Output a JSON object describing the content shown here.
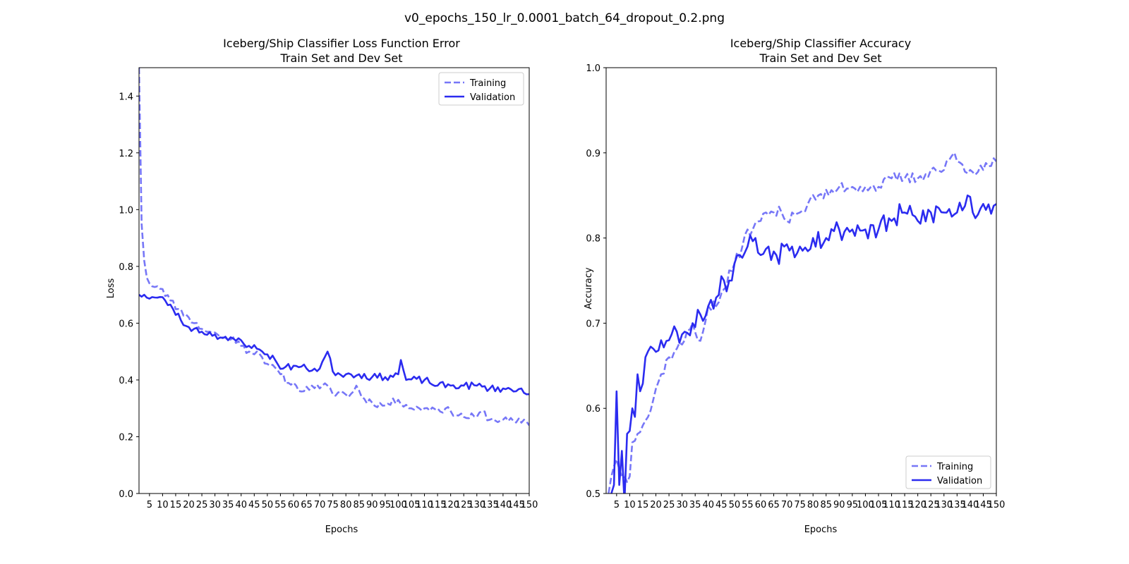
{
  "figure": {
    "suptitle": "v0_epochs_150_lr_0.0001_batch_64_dropout_0.2.png"
  },
  "colors": {
    "training": "#7777f7",
    "validation": "#2b2bf0",
    "axis": "#000000",
    "background": "#ffffff"
  },
  "chart_data": [
    {
      "id": "loss",
      "type": "line",
      "title_line1": "Iceberg/Ship Classifier Loss Function Error",
      "title_line2": "Train Set and Dev Set",
      "xlabel": "Epochs",
      "ylabel": "Loss",
      "xlim": [
        1,
        150
      ],
      "ylim": [
        0.0,
        1.5
      ],
      "xticks": [
        5,
        10,
        15,
        20,
        25,
        30,
        35,
        40,
        45,
        50,
        55,
        60,
        65,
        70,
        75,
        80,
        85,
        90,
        95,
        100,
        105,
        110,
        115,
        120,
        125,
        130,
        135,
        140,
        145,
        150
      ],
      "yticks": [
        0.0,
        0.2,
        0.4,
        0.6,
        0.8,
        1.0,
        1.2,
        1.4
      ],
      "ytick_labels": [
        "0.0",
        "0.2",
        "0.4",
        "0.6",
        "0.8",
        "1.0",
        "1.2",
        "1.4"
      ],
      "grid": false,
      "legend_position": "top-right",
      "series": [
        {
          "name": "Training",
          "style": "dashed",
          "keypoints": [
            [
              1,
              1.5
            ],
            [
              2,
              0.95
            ],
            [
              3,
              0.82
            ],
            [
              4,
              0.76
            ],
            [
              5,
              0.74
            ],
            [
              8,
              0.73
            ],
            [
              10,
              0.72
            ],
            [
              13,
              0.68
            ],
            [
              16,
              0.65
            ],
            [
              19,
              0.63
            ],
            [
              20,
              0.62
            ],
            [
              22,
              0.6
            ],
            [
              25,
              0.58
            ],
            [
              28,
              0.57
            ],
            [
              31,
              0.56
            ],
            [
              35,
              0.54
            ],
            [
              37,
              0.55
            ],
            [
              40,
              0.52
            ],
            [
              43,
              0.5
            ],
            [
              46,
              0.5
            ],
            [
              48,
              0.48
            ],
            [
              51,
              0.45
            ],
            [
              55,
              0.42
            ],
            [
              58,
              0.39
            ],
            [
              61,
              0.38
            ],
            [
              64,
              0.36
            ],
            [
              67,
              0.38
            ],
            [
              70,
              0.37
            ],
            [
              73,
              0.38
            ],
            [
              75,
              0.35
            ],
            [
              78,
              0.36
            ],
            [
              81,
              0.34
            ],
            [
              84,
              0.38
            ],
            [
              86,
              0.34
            ],
            [
              90,
              0.32
            ],
            [
              95,
              0.31
            ],
            [
              100,
              0.33
            ],
            [
              105,
              0.3
            ],
            [
              110,
              0.3
            ],
            [
              115,
              0.3
            ],
            [
              120,
              0.29
            ],
            [
              125,
              0.27
            ],
            [
              130,
              0.27
            ],
            [
              132,
              0.29
            ],
            [
              135,
              0.26
            ],
            [
              140,
              0.26
            ],
            [
              145,
              0.25
            ],
            [
              148,
              0.26
            ],
            [
              150,
              0.24
            ]
          ],
          "noise": 0.013,
          "seed": 11
        },
        {
          "name": "Validation",
          "style": "solid",
          "keypoints": [
            [
              1,
              0.7
            ],
            [
              3,
              0.7
            ],
            [
              4,
              0.69
            ],
            [
              8,
              0.69
            ],
            [
              11,
              0.68
            ],
            [
              14,
              0.65
            ],
            [
              17,
              0.61
            ],
            [
              19,
              0.59
            ],
            [
              22,
              0.58
            ],
            [
              25,
              0.57
            ],
            [
              30,
              0.56
            ],
            [
              35,
              0.54
            ],
            [
              40,
              0.54
            ],
            [
              43,
              0.52
            ],
            [
              46,
              0.51
            ],
            [
              50,
              0.49
            ],
            [
              53,
              0.47
            ],
            [
              56,
              0.44
            ],
            [
              60,
              0.45
            ],
            [
              65,
              0.44
            ],
            [
              70,
              0.44
            ],
            [
              73,
              0.5
            ],
            [
              75,
              0.43
            ],
            [
              80,
              0.42
            ],
            [
              85,
              0.42
            ],
            [
              90,
              0.41
            ],
            [
              95,
              0.41
            ],
            [
              100,
              0.42
            ],
            [
              101,
              0.47
            ],
            [
              103,
              0.4
            ],
            [
              110,
              0.4
            ],
            [
              115,
              0.38
            ],
            [
              120,
              0.38
            ],
            [
              125,
              0.38
            ],
            [
              130,
              0.38
            ],
            [
              135,
              0.37
            ],
            [
              140,
              0.37
            ],
            [
              145,
              0.36
            ],
            [
              147,
              0.37
            ],
            [
              150,
              0.35
            ]
          ],
          "noise": 0.013,
          "seed": 23
        }
      ]
    },
    {
      "id": "accuracy",
      "type": "line",
      "title_line1": "Iceberg/Ship Classifier Accuracy",
      "title_line2": "Train Set and Dev Set",
      "xlabel": "Epochs",
      "ylabel": "Accuracy",
      "xlim": [
        1,
        150
      ],
      "ylim": [
        0.5,
        1.0
      ],
      "xticks": [
        5,
        10,
        15,
        20,
        25,
        30,
        35,
        40,
        45,
        50,
        55,
        60,
        65,
        70,
        75,
        80,
        85,
        90,
        95,
        100,
        105,
        110,
        115,
        120,
        125,
        130,
        135,
        140,
        145,
        150
      ],
      "yticks": [
        0.5,
        0.6,
        0.7,
        0.8,
        0.9,
        1.0
      ],
      "ytick_labels": [
        "0.5",
        "0.6",
        "0.7",
        "0.8",
        "0.9",
        "1.0"
      ],
      "grid": false,
      "legend_position": "bottom-right",
      "series": [
        {
          "name": "Training",
          "style": "dashed",
          "keypoints": [
            [
              1,
              0.49
            ],
            [
              3,
              0.52
            ],
            [
              5,
              0.54
            ],
            [
              8,
              0.52
            ],
            [
              10,
              0.52
            ],
            [
              11,
              0.56
            ],
            [
              13,
              0.57
            ],
            [
              15,
              0.58
            ],
            [
              17,
              0.59
            ],
            [
              19,
              0.61
            ],
            [
              22,
              0.64
            ],
            [
              25,
              0.66
            ],
            [
              28,
              0.67
            ],
            [
              31,
              0.68
            ],
            [
              34,
              0.7
            ],
            [
              36,
              0.68
            ],
            [
              38,
              0.69
            ],
            [
              40,
              0.72
            ],
            [
              43,
              0.72
            ],
            [
              46,
              0.74
            ],
            [
              50,
              0.77
            ],
            [
              53,
              0.79
            ],
            [
              55,
              0.81
            ],
            [
              57,
              0.81
            ],
            [
              60,
              0.82
            ],
            [
              62,
              0.83
            ],
            [
              65,
              0.83
            ],
            [
              68,
              0.83
            ],
            [
              70,
              0.82
            ],
            [
              72,
              0.83
            ],
            [
              75,
              0.83
            ],
            [
              78,
              0.84
            ],
            [
              82,
              0.85
            ],
            [
              86,
              0.85
            ],
            [
              90,
              0.86
            ],
            [
              95,
              0.86
            ],
            [
              100,
              0.86
            ],
            [
              105,
              0.86
            ],
            [
              110,
              0.87
            ],
            [
              115,
              0.87
            ],
            [
              120,
              0.87
            ],
            [
              125,
              0.88
            ],
            [
              130,
              0.88
            ],
            [
              134,
              0.9
            ],
            [
              135,
              0.89
            ],
            [
              140,
              0.88
            ],
            [
              145,
              0.88
            ],
            [
              150,
              0.89
            ]
          ],
          "noise": 0.007,
          "seed": 37
        },
        {
          "name": "Validation",
          "style": "solid",
          "keypoints": [
            [
              1,
              0.5
            ],
            [
              3,
              0.5
            ],
            [
              4,
              0.51
            ],
            [
              5,
              0.62
            ],
            [
              6,
              0.51
            ],
            [
              7,
              0.55
            ],
            [
              8,
              0.49
            ],
            [
              9,
              0.57
            ],
            [
              11,
              0.6
            ],
            [
              12,
              0.59
            ],
            [
              13,
              0.64
            ],
            [
              14,
              0.62
            ],
            [
              16,
              0.66
            ],
            [
              19,
              0.67
            ],
            [
              22,
              0.68
            ],
            [
              25,
              0.68
            ],
            [
              28,
              0.69
            ],
            [
              31,
              0.69
            ],
            [
              34,
              0.7
            ],
            [
              37,
              0.71
            ],
            [
              40,
              0.72
            ],
            [
              43,
              0.73
            ],
            [
              46,
              0.75
            ],
            [
              48,
              0.75
            ],
            [
              52,
              0.78
            ],
            [
              55,
              0.79
            ],
            [
              58,
              0.8
            ],
            [
              60,
              0.78
            ],
            [
              63,
              0.79
            ],
            [
              66,
              0.78
            ],
            [
              69,
              0.79
            ],
            [
              72,
              0.79
            ],
            [
              75,
              0.79
            ],
            [
              80,
              0.8
            ],
            [
              85,
              0.8
            ],
            [
              90,
              0.81
            ],
            [
              95,
              0.81
            ],
            [
              100,
              0.81
            ],
            [
              105,
              0.81
            ],
            [
              110,
              0.82
            ],
            [
              115,
              0.83
            ],
            [
              120,
              0.82
            ],
            [
              125,
              0.83
            ],
            [
              130,
              0.83
            ],
            [
              135,
              0.83
            ],
            [
              139,
              0.85
            ],
            [
              141,
              0.83
            ],
            [
              145,
              0.84
            ],
            [
              150,
              0.84
            ]
          ],
          "noise": 0.014,
          "seed": 53
        }
      ]
    }
  ]
}
